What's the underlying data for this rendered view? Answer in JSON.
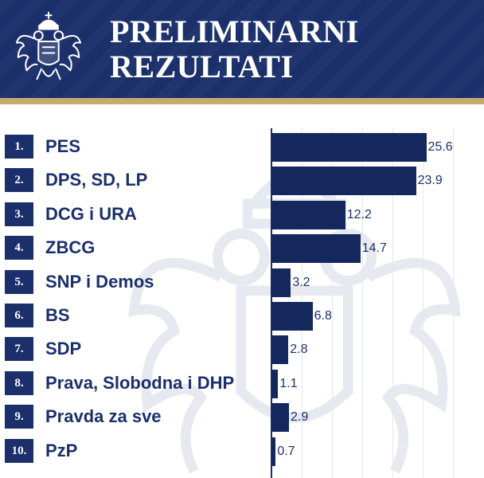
{
  "header": {
    "title": "PRELIMINARNI\nREZULTATI",
    "emblem_icon": "montenegro-coat-of-arms-icon"
  },
  "colors": {
    "primary": "#1b2f6b",
    "bar": "#14285e",
    "gold": "#c7ab6e",
    "background": "#ffffff"
  },
  "chart_data": {
    "type": "bar",
    "orientation": "horizontal",
    "title": "PRELIMINARNI REZULTATI",
    "xlabel": "",
    "ylabel": "",
    "xlim": [
      0,
      30
    ],
    "grid": true,
    "categories": [
      "PES",
      "DPS, SD, LP",
      "DCG i URA",
      "ZBCG",
      "SNP i Demos",
      "BS",
      "SDP",
      "Prava, Slobodna i DHP",
      "Pravda za sve",
      "PzP"
    ],
    "ranks": [
      "1.",
      "2.",
      "3.",
      "4.",
      "5.",
      "6.",
      "7.",
      "8.",
      "9.",
      "10."
    ],
    "values": [
      25.6,
      23.9,
      12.2,
      14.7,
      3.2,
      6.8,
      2.8,
      1.1,
      2.9,
      0.7
    ],
    "value_labels": [
      "25.6",
      "23.9",
      "12.2",
      "14.7",
      "3.2",
      "6.8",
      "2.8",
      "1.1",
      "2.9",
      "0.7"
    ]
  }
}
